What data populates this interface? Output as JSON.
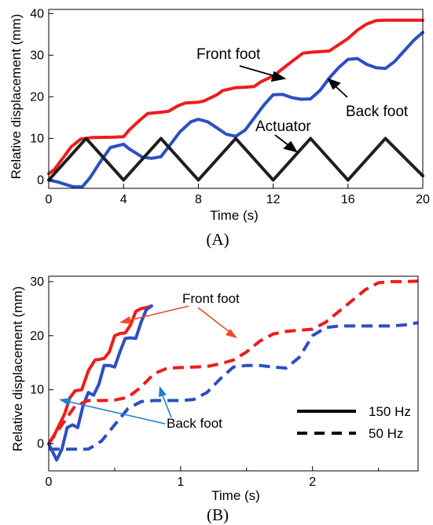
{
  "chart_data": [
    {
      "panel_label": "(A)",
      "type": "line",
      "title": "",
      "xlabel": "Time (s)",
      "ylabel": "Relative displacement  (mm)",
      "xlim": [
        0,
        20
      ],
      "ylim": [
        -2,
        41
      ],
      "xticks": [
        0,
        4,
        8,
        12,
        16,
        20
      ],
      "yticks": [
        0,
        10,
        20,
        30,
        40
      ],
      "grid": false,
      "series": [
        {
          "color": "#ee1c1c",
          "x": [
            0,
            0.3,
            0.8,
            1.2,
            1.7,
            2.0,
            2.3,
            3.5,
            4.0,
            4.3,
            4.9,
            5.3,
            6.0,
            6.4,
            6.9,
            7.3,
            8.0,
            8.3,
            9.0,
            9.3,
            10.0,
            10.5,
            11.0,
            11.3,
            12.0,
            12.3,
            13.0,
            13.6,
            14.0,
            14.3,
            15.0,
            15.5,
            16.0,
            16.5,
            17.0,
            17.5,
            18.0,
            19.0,
            20.0
          ],
          "y": [
            1.5,
            2.5,
            5.5,
            8.0,
            9.8,
            10.0,
            10.2,
            10.3,
            10.4,
            12.0,
            14.5,
            16.0,
            16.3,
            16.5,
            17.8,
            18.5,
            18.7,
            19.0,
            20.5,
            21.5,
            22.2,
            22.3,
            22.5,
            23.5,
            25.0,
            26.0,
            28.5,
            30.5,
            30.7,
            30.8,
            31.0,
            32.5,
            34.0,
            36.0,
            37.5,
            38.3,
            38.4,
            38.4,
            38.4
          ]
        },
        {
          "color": "#2b4fc4",
          "x": [
            0,
            0.5,
            1.0,
            1.3,
            1.8,
            2.2,
            2.7,
            3.3,
            4.0,
            4.3,
            5.0,
            5.5,
            6.0,
            6.5,
            7.0,
            7.6,
            8.0,
            8.5,
            9.0,
            9.5,
            10.0,
            10.5,
            11.0,
            11.5,
            12.0,
            12.5,
            13.0,
            13.5,
            14.0,
            14.5,
            15.0,
            15.5,
            16.0,
            16.5,
            17.0,
            17.5,
            18.0,
            18.5,
            19.0,
            19.5,
            20.0
          ],
          "y": [
            0,
            -0.5,
            -1.2,
            -1.6,
            -1.6,
            0.5,
            4.0,
            7.8,
            8.6,
            7.5,
            5.5,
            5.2,
            5.6,
            8.5,
            11.5,
            14.0,
            14.6,
            14.0,
            12.5,
            11.0,
            10.5,
            12.0,
            15.0,
            18.0,
            20.5,
            20.6,
            19.8,
            19.4,
            19.5,
            21.5,
            24.5,
            27.0,
            29.0,
            29.2,
            27.8,
            27.0,
            26.8,
            28.5,
            31.0,
            33.5,
            35.5
          ]
        },
        {
          "color": "#1e1e1e",
          "x": [
            0,
            2,
            4,
            6,
            8,
            10,
            12,
            14,
            16,
            18,
            20
          ],
          "y": [
            0,
            10,
            0,
            10,
            0,
            10,
            0,
            10,
            0,
            10,
            1
          ]
        }
      ],
      "annotations": [
        "Front foot",
        "Back foot",
        "Actuator"
      ]
    },
    {
      "panel_label": "(B)",
      "type": "line",
      "title": "",
      "xlabel": "Time (s)",
      "ylabel": "Relative displacement  (mm)",
      "xlim": [
        0,
        2.8
      ],
      "ylim": [
        -5,
        31
      ],
      "xticks": [
        0,
        1,
        2
      ],
      "yticks": [
        0,
        10,
        20,
        30
      ],
      "grid": false,
      "legend_position": "bottom-right",
      "legend": [
        "150 Hz",
        "50 Hz"
      ],
      "series": [
        {
          "name": "150 Hz",
          "color": "#ee1c1c",
          "style": "solid",
          "x": [
            0,
            0.05,
            0.08,
            0.12,
            0.16,
            0.2,
            0.25,
            0.3,
            0.35,
            0.38,
            0.42,
            0.46,
            0.5,
            0.54,
            0.58,
            0.62,
            0.66,
            0.7,
            0.74,
            0.78
          ],
          "y": [
            0,
            2.0,
            3.5,
            5.5,
            8.5,
            9.8,
            10.0,
            13.5,
            15.5,
            15.6,
            15.8,
            17.0,
            20.0,
            20.4,
            20.5,
            22.0,
            24.5,
            25.0,
            25.2,
            25.5
          ]
        },
        {
          "name": "150 Hz",
          "color": "#2b4fc4",
          "style": "solid",
          "x": [
            0,
            0.03,
            0.06,
            0.1,
            0.14,
            0.18,
            0.22,
            0.26,
            0.3,
            0.34,
            0.38,
            0.42,
            0.46,
            0.5,
            0.54,
            0.58,
            0.62,
            0.66,
            0.7,
            0.74,
            0.78
          ],
          "y": [
            0,
            -1.5,
            -3.0,
            -1.0,
            3.0,
            3.5,
            3.0,
            7.0,
            9.5,
            9.0,
            11.0,
            14.5,
            14.5,
            14.2,
            17.0,
            19.5,
            19.6,
            19.5,
            22.5,
            24.8,
            25.5
          ]
        },
        {
          "name": "50 Hz",
          "color": "#ee1c1c",
          "style": "dashed",
          "x": [
            0,
            0.1,
            0.2,
            0.3,
            0.4,
            0.5,
            0.6,
            0.7,
            0.8,
            0.9,
            1.0,
            1.1,
            1.2,
            1.3,
            1.4,
            1.5,
            1.6,
            1.7,
            1.8,
            1.9,
            2.0,
            2.1,
            2.2,
            2.3,
            2.4,
            2.5,
            2.6,
            2.7,
            2.8
          ],
          "y": [
            0,
            3.5,
            7.0,
            8.0,
            8.0,
            8.1,
            8.6,
            10.5,
            13.0,
            14.0,
            14.1,
            14.2,
            14.3,
            14.8,
            15.5,
            17.0,
            19.0,
            20.3,
            20.8,
            21.0,
            21.2,
            22.5,
            24.5,
            26.5,
            28.5,
            29.8,
            30.0,
            30.0,
            30.1
          ]
        },
        {
          "name": "50 Hz",
          "color": "#2b4fc4",
          "style": "dashed",
          "x": [
            0,
            0.1,
            0.2,
            0.3,
            0.4,
            0.5,
            0.6,
            0.7,
            0.8,
            0.9,
            1.0,
            1.1,
            1.2,
            1.3,
            1.4,
            1.5,
            1.6,
            1.7,
            1.8,
            1.9,
            2.0,
            2.1,
            2.2,
            2.3,
            2.4,
            2.5,
            2.6,
            2.7,
            2.8
          ],
          "y": [
            -1.0,
            -1.0,
            -1.0,
            -1.0,
            0.5,
            3.5,
            6.5,
            7.8,
            8.0,
            8.0,
            8.0,
            8.2,
            9.5,
            12.0,
            14.2,
            14.5,
            14.5,
            14.2,
            14.0,
            16.0,
            20.0,
            21.5,
            21.8,
            21.8,
            21.8,
            21.8,
            21.8,
            22.0,
            22.4
          ]
        }
      ],
      "annotations": [
        "Front foot",
        "Back foot"
      ]
    }
  ]
}
